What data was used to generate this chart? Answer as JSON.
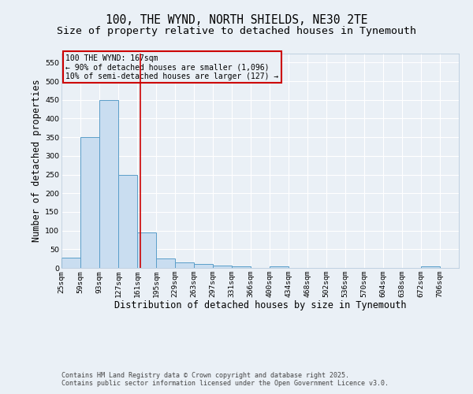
{
  "title_line1": "100, THE WYND, NORTH SHIELDS, NE30 2TE",
  "title_line2": "Size of property relative to detached houses in Tynemouth",
  "xlabel": "Distribution of detached houses by size in Tynemouth",
  "ylabel": "Number of detached properties",
  "bins": [
    25,
    59,
    93,
    127,
    161,
    195,
    229,
    263,
    297,
    331,
    366,
    400,
    434,
    468,
    502,
    536,
    570,
    604,
    638,
    672,
    706
  ],
  "bar_heights": [
    28,
    350,
    450,
    250,
    95,
    25,
    15,
    10,
    6,
    4,
    0,
    4,
    0,
    0,
    0,
    0,
    0,
    0,
    0,
    4
  ],
  "bar_color": "#c9ddf0",
  "bar_edge_color": "#5a9ec9",
  "vline_x": 167,
  "vline_color": "#cc0000",
  "ylim": [
    0,
    575
  ],
  "yticks": [
    0,
    50,
    100,
    150,
    200,
    250,
    300,
    350,
    400,
    450,
    500,
    550
  ],
  "annotation_title": "100 THE WYND: 167sqm",
  "annotation_line1": "← 90% of detached houses are smaller (1,096)",
  "annotation_line2": "10% of semi-detached houses are larger (127) →",
  "annotation_box_color": "#cc0000",
  "footnote_line1": "Contains HM Land Registry data © Crown copyright and database right 2025.",
  "footnote_line2": "Contains public sector information licensed under the Open Government Licence v3.0.",
  "bg_color": "#eaf0f6",
  "grid_color": "#ffffff",
  "title_fontsize": 10.5,
  "subtitle_fontsize": 9.5,
  "axis_label_fontsize": 8.5,
  "tick_fontsize": 6.8,
  "annotation_fontsize": 7.0,
  "footnote_fontsize": 6.0
}
